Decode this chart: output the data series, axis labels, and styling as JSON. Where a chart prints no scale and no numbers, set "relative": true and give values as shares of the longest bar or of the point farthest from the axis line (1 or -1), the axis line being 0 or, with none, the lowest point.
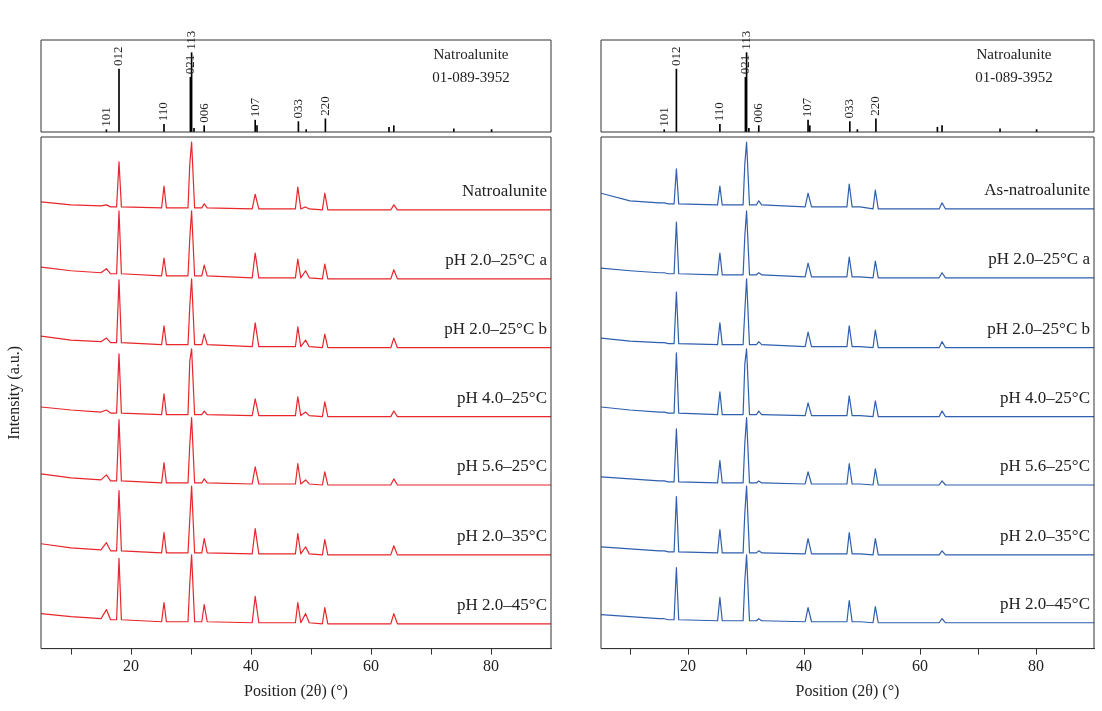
{
  "chart_data": [
    {
      "type": "bar",
      "relative": true,
      "xlim": [
        5,
        90
      ],
      "tick_labels": false,
      "color": "#000000",
      "x": [
        15.9,
        18.0,
        25.5,
        29.9,
        30.1,
        30.5,
        32.2,
        40.7,
        41.0,
        47.9,
        49.2,
        52.4,
        63.0,
        63.8,
        73.8,
        80.1
      ],
      "values": [
        0.028,
        0.793,
        0.097,
        0.69,
        1,
        0.046,
        0.08,
        0.149,
        0.08,
        0.131,
        0.03,
        0.166,
        0.06,
        0.08,
        0.04,
        0.03
      ],
      "annotations": [
        {
          "text": "101",
          "x": 15.9,
          "y": 0.028
        },
        {
          "text": "012",
          "x": 18.0,
          "y": 0.793
        },
        {
          "text": "110",
          "x": 25.5,
          "y": 0.097
        },
        {
          "text": "021",
          "x": 29.9,
          "y": 0.69
        },
        {
          "text": "113",
          "x": 30.1,
          "y": 1
        },
        {
          "text": "006",
          "x": 32.2,
          "y": 0.08
        },
        {
          "text": "107",
          "x": 40.7,
          "y": 0.149
        },
        {
          "text": "033",
          "x": 47.9,
          "y": 0.131
        },
        {
          "text": "220",
          "x": 52.4,
          "y": 0.166
        },
        "Natroalunite",
        "01-089-3952"
      ]
    },
    {
      "type": "line",
      "relative": true,
      "xlim": [
        5,
        90
      ],
      "tick_labels": "x",
      "xlabel": "Position (2θ) (°)",
      "ylabel": "Intensity (a.u.)",
      "xticks": [
        {
          "value": 10,
          "label": null
        },
        20,
        {
          "value": 30,
          "label": null
        },
        40,
        {
          "value": 50,
          "label": null
        },
        60,
        {
          "value": 70,
          "label": null
        },
        80
      ],
      "x": [
        5,
        10,
        15,
        15.9,
        16.6,
        17.6,
        18.0,
        18.4,
        25.1,
        25.5,
        25.9,
        29.5,
        29.8,
        30.1,
        30.6,
        31.8,
        32.2,
        32.7,
        40.2,
        40.7,
        41.3,
        47.4,
        47.8,
        48.3,
        49.1,
        49.7,
        51.9,
        52.3,
        52.8,
        63.3,
        63.8,
        64.4,
        74,
        90
      ],
      "series": [
        {
          "name": "Natroalunite",
          "color": "#e8262b",
          "values": [
            0.882,
            0.876,
            0.874,
            0.876,
            0.872,
            0.872,
            0.961,
            0.872,
            0.87,
            0.913,
            0.87,
            0.87,
            0.957,
            1,
            0.87,
            0.87,
            0.878,
            0.87,
            0.868,
            0.897,
            0.868,
            0.868,
            0.911,
            0.868,
            0.872,
            0.868,
            0.866,
            0.899,
            0.866,
            0.866,
            0.876,
            0.866,
            0.866,
            0.866
          ]
        },
        {
          "name": "pH 2.0–25°C a",
          "color": "#e8262b",
          "values": [
            0.753,
            0.746,
            0.742,
            0.75,
            0.74,
            0.74,
            0.864,
            0.74,
            0.736,
            0.771,
            0.736,
            0.736,
            0.811,
            0.864,
            0.736,
            0.736,
            0.757,
            0.736,
            0.732,
            0.781,
            0.732,
            0.732,
            0.769,
            0.732,
            0.746,
            0.732,
            0.73,
            0.759,
            0.73,
            0.73,
            0.748,
            0.73,
            0.73,
            0.73
          ]
        },
        {
          "name": "pH 2.0–25°C b",
          "color": "#e8262b",
          "values": [
            0.617,
            0.609,
            0.606,
            0.613,
            0.604,
            0.604,
            0.728,
            0.604,
            0.6,
            0.637,
            0.6,
            0.6,
            0.677,
            0.73,
            0.6,
            0.6,
            0.621,
            0.6,
            0.596,
            0.643,
            0.596,
            0.596,
            0.635,
            0.596,
            0.609,
            0.596,
            0.594,
            0.621,
            0.594,
            0.594,
            0.613,
            0.594,
            0.594,
            0.594
          ]
        },
        {
          "name": "pH 4.0–25°C",
          "color": "#e8262b",
          "values": [
            0.477,
            0.471,
            0.467,
            0.471,
            0.465,
            0.465,
            0.582,
            0.465,
            0.462,
            0.503,
            0.462,
            0.462,
            0.568,
            0.592,
            0.462,
            0.462,
            0.469,
            0.462,
            0.46,
            0.493,
            0.46,
            0.46,
            0.497,
            0.46,
            0.467,
            0.46,
            0.458,
            0.487,
            0.458,
            0.458,
            0.469,
            0.458,
            0.458,
            0.458
          ]
        },
        {
          "name": "pH 5.6–25°C",
          "color": "#e8262b",
          "values": [
            0.345,
            0.337,
            0.333,
            0.343,
            0.331,
            0.331,
            0.452,
            0.331,
            0.327,
            0.367,
            0.327,
            0.327,
            0.404,
            0.456,
            0.327,
            0.327,
            0.335,
            0.327,
            0.325,
            0.359,
            0.325,
            0.325,
            0.365,
            0.325,
            0.333,
            0.325,
            0.323,
            0.349,
            0.323,
            0.323,
            0.335,
            0.323,
            0.323,
            0.323
          ]
        },
        {
          "name": "pH 2.0–35°C",
          "color": "#e8262b",
          "values": [
            0.207,
            0.199,
            0.195,
            0.209,
            0.193,
            0.193,
            0.312,
            0.193,
            0.189,
            0.229,
            0.189,
            0.189,
            0.256,
            0.321,
            0.189,
            0.189,
            0.217,
            0.189,
            0.187,
            0.237,
            0.187,
            0.187,
            0.227,
            0.187,
            0.201,
            0.187,
            0.185,
            0.215,
            0.185,
            0.185,
            0.203,
            0.185,
            0.185,
            0.185
          ]
        },
        {
          "name": "pH 2.0–45°C",
          "color": "#e8262b",
          "values": [
            0.069,
            0.063,
            0.059,
            0.077,
            0.057,
            0.057,
            0.178,
            0.057,
            0.053,
            0.091,
            0.053,
            0.053,
            0.13,
            0.185,
            0.053,
            0.053,
            0.087,
            0.053,
            0.051,
            0.103,
            0.051,
            0.051,
            0.091,
            0.051,
            0.069,
            0.051,
            0.049,
            0.081,
            0.049,
            0.049,
            0.069,
            0.049,
            0.049,
            0.049
          ]
        }
      ]
    },
    {
      "type": "bar",
      "relative": true,
      "xlim": [
        5,
        90
      ],
      "tick_labels": false,
      "color": "#000000",
      "x": [
        15.9,
        18.0,
        25.5,
        29.9,
        30.1,
        30.5,
        32.2,
        40.7,
        41.0,
        47.9,
        49.2,
        52.4,
        63.0,
        63.8,
        73.8,
        80.1
      ],
      "values": [
        0.028,
        0.793,
        0.097,
        0.69,
        1,
        0.046,
        0.08,
        0.149,
        0.08,
        0.131,
        0.03,
        0.166,
        0.06,
        0.08,
        0.04,
        0.03
      ],
      "annotations": [
        {
          "text": "101",
          "x": 15.9,
          "y": 0.028
        },
        {
          "text": "012",
          "x": 18.0,
          "y": 0.793
        },
        {
          "text": "110",
          "x": 25.5,
          "y": 0.097
        },
        {
          "text": "021",
          "x": 29.9,
          "y": 0.69
        },
        {
          "text": "113",
          "x": 30.1,
          "y": 1
        },
        {
          "text": "006",
          "x": 32.2,
          "y": 0.08
        },
        {
          "text": "107",
          "x": 40.7,
          "y": 0.149
        },
        {
          "text": "033",
          "x": 47.9,
          "y": 0.131
        },
        {
          "text": "220",
          "x": 52.4,
          "y": 0.166
        },
        "Natroalunite",
        "01-089-3952"
      ]
    },
    {
      "type": "line",
      "relative": true,
      "xlim": [
        5,
        90
      ],
      "tick_labels": "x",
      "xlabel": "Position (2θ) (°)",
      "xticks": [
        {
          "value": 10,
          "label": null
        },
        20,
        {
          "value": 30,
          "label": null
        },
        40,
        {
          "value": 50,
          "label": null
        },
        60,
        {
          "value": 70,
          "label": null
        },
        80
      ],
      "x": [
        5,
        10,
        15,
        15.9,
        16.6,
        17.6,
        18.0,
        18.4,
        25.1,
        25.5,
        25.9,
        29.5,
        29.8,
        30.1,
        30.6,
        31.8,
        32.2,
        32.7,
        40.2,
        40.7,
        41.3,
        47.4,
        47.8,
        48.3,
        49.1,
        49.7,
        51.9,
        52.3,
        52.8,
        63.3,
        63.8,
        64.4,
        74,
        90
      ],
      "series": [
        {
          "name": "As-natroalunite",
          "color": "#2f5fae",
          "values": [
            0.899,
            0.884,
            0.88,
            0.88,
            0.878,
            0.878,
            0.947,
            0.878,
            0.876,
            0.913,
            0.876,
            0.876,
            0.957,
            1,
            0.876,
            0.876,
            0.884,
            0.876,
            0.872,
            0.899,
            0.872,
            0.872,
            0.917,
            0.872,
            0.872,
            0.872,
            0.868,
            0.905,
            0.868,
            0.868,
            0.88,
            0.868,
            0.868,
            0.868
          ]
        },
        {
          "name": "pH 2.0–25°C a",
          "color": "#2f5fae",
          "values": [
            0.751,
            0.746,
            0.742,
            0.742,
            0.74,
            0.74,
            0.842,
            0.74,
            0.738,
            0.781,
            0.738,
            0.738,
            0.815,
            0.864,
            0.738,
            0.738,
            0.742,
            0.738,
            0.734,
            0.761,
            0.734,
            0.734,
            0.773,
            0.734,
            0.734,
            0.734,
            0.732,
            0.765,
            0.732,
            0.732,
            0.742,
            0.732,
            0.732,
            0.732
          ]
        },
        {
          "name": "pH 2.0–25°C b",
          "color": "#2f5fae",
          "values": [
            0.613,
            0.607,
            0.604,
            0.604,
            0.602,
            0.602,
            0.704,
            0.602,
            0.6,
            0.643,
            0.6,
            0.6,
            0.667,
            0.73,
            0.6,
            0.6,
            0.606,
            0.6,
            0.596,
            0.625,
            0.596,
            0.596,
            0.637,
            0.596,
            0.596,
            0.596,
            0.594,
            0.629,
            0.594,
            0.594,
            0.606,
            0.594,
            0.594,
            0.594
          ]
        },
        {
          "name": "pH 4.0–25°C",
          "color": "#2f5fae",
          "values": [
            0.477,
            0.471,
            0.467,
            0.467,
            0.465,
            0.465,
            0.584,
            0.465,
            0.462,
            0.507,
            0.462,
            0.462,
            0.562,
            0.592,
            0.462,
            0.462,
            0.469,
            0.462,
            0.46,
            0.485,
            0.46,
            0.46,
            0.499,
            0.46,
            0.46,
            0.46,
            0.458,
            0.489,
            0.458,
            0.458,
            0.469,
            0.458,
            0.458,
            0.458
          ]
        },
        {
          "name": "pH 5.6–25°C",
          "color": "#2f5fae",
          "values": [
            0.339,
            0.335,
            0.331,
            0.331,
            0.329,
            0.329,
            0.434,
            0.329,
            0.327,
            0.371,
            0.327,
            0.327,
            0.406,
            0.456,
            0.327,
            0.327,
            0.331,
            0.327,
            0.325,
            0.349,
            0.325,
            0.325,
            0.365,
            0.325,
            0.325,
            0.325,
            0.323,
            0.355,
            0.323,
            0.323,
            0.331,
            0.323,
            0.323,
            0.323
          ]
        },
        {
          "name": "pH 2.0–35°C",
          "color": "#2f5fae",
          "values": [
            0.201,
            0.197,
            0.193,
            0.193,
            0.191,
            0.191,
            0.3,
            0.191,
            0.189,
            0.235,
            0.189,
            0.189,
            0.268,
            0.321,
            0.189,
            0.189,
            0.193,
            0.189,
            0.187,
            0.217,
            0.187,
            0.187,
            0.229,
            0.187,
            0.187,
            0.187,
            0.185,
            0.217,
            0.185,
            0.185,
            0.193,
            0.185,
            0.185,
            0.185
          ]
        },
        {
          "name": "pH 2.0–45°C",
          "color": "#2f5fae",
          "values": [
            0.067,
            0.063,
            0.059,
            0.059,
            0.057,
            0.057,
            0.16,
            0.057,
            0.055,
            0.101,
            0.055,
            0.055,
            0.134,
            0.185,
            0.055,
            0.055,
            0.059,
            0.055,
            0.053,
            0.081,
            0.053,
            0.053,
            0.095,
            0.053,
            0.053,
            0.053,
            0.051,
            0.083,
            0.051,
            0.051,
            0.059,
            0.051,
            0.051,
            0.051
          ]
        }
      ]
    }
  ]
}
